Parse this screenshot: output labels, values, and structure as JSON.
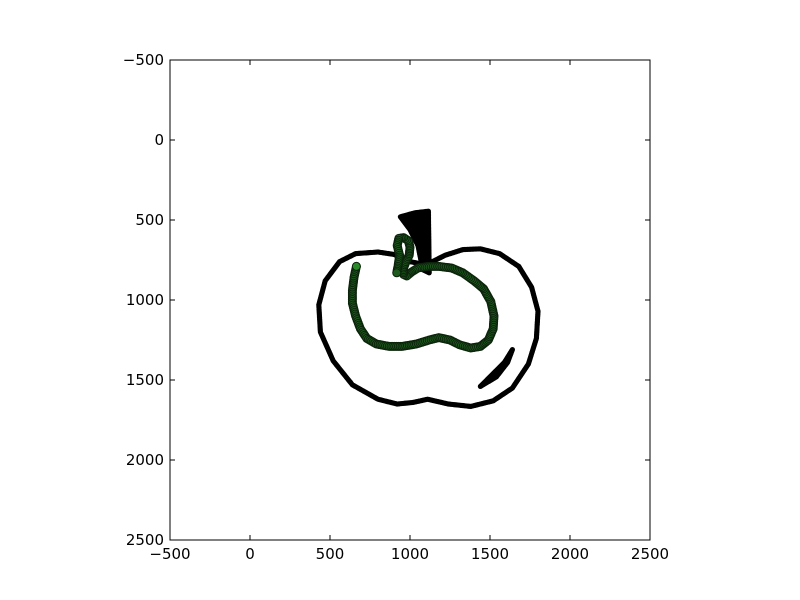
{
  "chart_data": {
    "type": "scatter",
    "title": "",
    "xlabel": "",
    "ylabel": "",
    "xlim": [
      -500,
      2500
    ],
    "ylim": [
      2500,
      -500
    ],
    "y_inverted": true,
    "grid": false,
    "legend": "none",
    "x_ticks": [
      -500,
      0,
      500,
      1000,
      1500,
      2000,
      2500
    ],
    "y_ticks": [
      -500,
      0,
      500,
      1000,
      1500,
      2000,
      2500
    ],
    "x_tick_labels": [
      "−500",
      "0",
      "500",
      "1000",
      "1500",
      "2000",
      "2500"
    ],
    "y_tick_labels": [
      "−500",
      "0",
      "500",
      "1000",
      "1500",
      "2000",
      "2500"
    ],
    "colors": {
      "outline": "#000000",
      "path": "#1f5a1f",
      "path_edge": "#0b240b",
      "path_start": "#2a8a2a"
    },
    "series": [
      {
        "kind": "outline",
        "points": [
          [
            1100,
            780
          ],
          [
            1220,
            720
          ],
          [
            1330,
            685
          ],
          [
            1440,
            680
          ],
          [
            1560,
            710
          ],
          [
            1680,
            790
          ],
          [
            1760,
            920
          ],
          [
            1800,
            1070
          ],
          [
            1790,
            1240
          ],
          [
            1740,
            1400
          ],
          [
            1640,
            1550
          ],
          [
            1520,
            1630
          ],
          [
            1380,
            1665
          ],
          [
            1240,
            1650
          ],
          [
            1110,
            1620
          ],
          [
            1020,
            1640
          ],
          [
            920,
            1650
          ],
          [
            800,
            1620
          ],
          [
            640,
            1530
          ],
          [
            520,
            1380
          ],
          [
            440,
            1200
          ],
          [
            430,
            1030
          ],
          [
            470,
            880
          ],
          [
            560,
            760
          ],
          [
            660,
            710
          ],
          [
            800,
            700
          ],
          [
            900,
            715
          ],
          [
            1000,
            760
          ],
          [
            1100,
            780
          ]
        ]
      },
      {
        "kind": "outline",
        "points": [
          [
            1640,
            1310
          ],
          [
            1610,
            1390
          ],
          [
            1540,
            1480
          ],
          [
            1440,
            1540
          ],
          [
            1510,
            1470
          ],
          [
            1590,
            1390
          ],
          [
            1640,
            1310
          ]
        ]
      },
      {
        "kind": "outline",
        "points": [
          [
            940,
            480
          ],
          [
            1030,
            455
          ],
          [
            1115,
            445
          ],
          [
            1120,
            830
          ],
          [
            1080,
            810
          ],
          [
            1050,
            660
          ],
          [
            1000,
            560
          ],
          [
            940,
            480
          ]
        ]
      },
      {
        "kind": "path",
        "points": [
          [
            665,
            790
          ],
          [
            650,
            860
          ],
          [
            640,
            940
          ],
          [
            640,
            1020
          ],
          [
            660,
            1100
          ],
          [
            690,
            1180
          ],
          [
            730,
            1240
          ],
          [
            790,
            1275
          ],
          [
            870,
            1290
          ],
          [
            950,
            1290
          ],
          [
            1040,
            1275
          ],
          [
            1120,
            1250
          ],
          [
            1180,
            1235
          ],
          [
            1250,
            1250
          ],
          [
            1310,
            1280
          ],
          [
            1380,
            1300
          ],
          [
            1440,
            1290
          ],
          [
            1490,
            1250
          ],
          [
            1520,
            1180
          ],
          [
            1525,
            1100
          ],
          [
            1505,
            1010
          ],
          [
            1460,
            930
          ],
          [
            1400,
            880
          ],
          [
            1330,
            830
          ],
          [
            1260,
            800
          ],
          [
            1180,
            790
          ],
          [
            1110,
            790
          ],
          [
            1050,
            800
          ],
          [
            1010,
            825
          ],
          [
            980,
            850
          ],
          [
            960,
            840
          ],
          [
            960,
            800
          ],
          [
            975,
            760
          ],
          [
            995,
            720
          ],
          [
            1000,
            670
          ],
          [
            990,
            630
          ],
          [
            960,
            610
          ],
          [
            930,
            615
          ],
          [
            920,
            660
          ],
          [
            935,
            720
          ],
          [
            925,
            790
          ],
          [
            915,
            840
          ]
        ]
      }
    ]
  }
}
